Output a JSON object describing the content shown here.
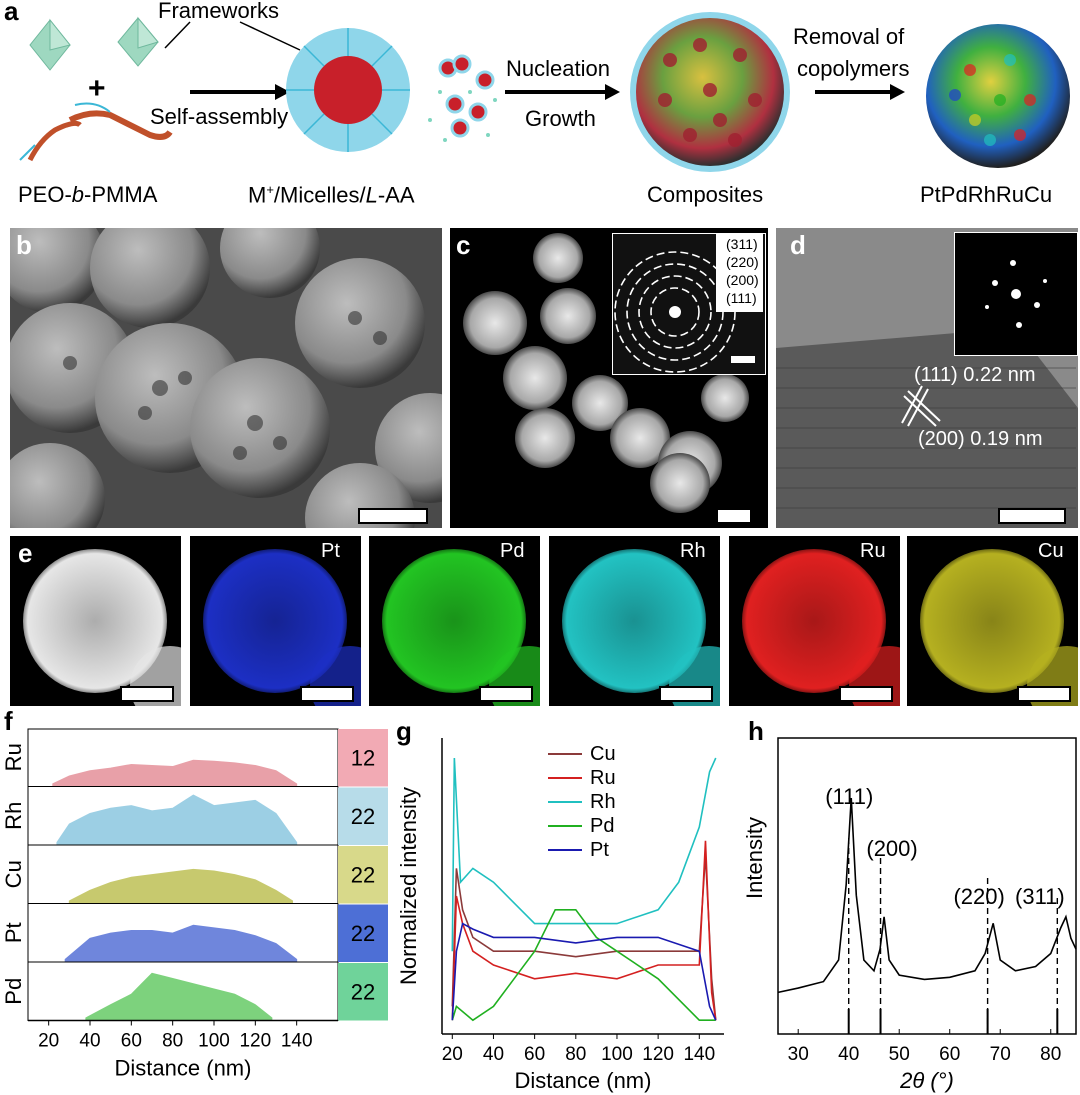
{
  "panel_labels": [
    "a",
    "b",
    "c",
    "d",
    "e",
    "f",
    "g",
    "h"
  ],
  "schematic": {
    "frameworks_label": "Frameworks",
    "plus_sign": "+",
    "self_assembly": "Self-assembly",
    "nucleation": "Nucleation",
    "growth": "Growth",
    "removal_line1": "Removal of",
    "removal_line2": "copolymers",
    "cap_peo_1": "PEO-",
    "cap_peo_b": "b",
    "cap_peo_2": "-PMMA",
    "cap_micelle_1": "M",
    "cap_micelle_sup": "+",
    "cap_micelle_2": "/Micelles/",
    "cap_micelle_L": "L",
    "cap_micelle_3": "-AA",
    "cap_composites": "Composites",
    "cap_product": "PtPdRhRuCu"
  },
  "panel_c": {
    "rings": [
      "(311)",
      "(220)",
      "(200)",
      "(111)"
    ]
  },
  "panel_d": {
    "plane1": "(111) 0.22 nm",
    "plane2": "(200) 0.19 nm"
  },
  "panel_e": {
    "maps": [
      {
        "label": "",
        "color": "#e6e6e6"
      },
      {
        "label": "Pt",
        "color": "#1c2fc4"
      },
      {
        "label": "Pd",
        "color": "#22c422"
      },
      {
        "label": "Rh",
        "color": "#22c2c2"
      },
      {
        "label": "Ru",
        "color": "#e02020"
      },
      {
        "label": "Cu",
        "color": "#b5b020"
      }
    ]
  },
  "chart_data": [
    {
      "panel": "f",
      "type": "area",
      "xlabel": "Distance (nm)",
      "xlim": [
        10,
        160
      ],
      "xticks": [
        20,
        40,
        60,
        80,
        100,
        120,
        140
      ],
      "series": [
        {
          "name": "Ru",
          "percent": "12",
          "color": "#e8a0a8",
          "badge": "#f2aab4",
          "x": [
            22,
            30,
            40,
            50,
            60,
            70,
            80,
            90,
            100,
            110,
            120,
            130,
            140
          ],
          "y": [
            0.05,
            0.2,
            0.3,
            0.35,
            0.42,
            0.4,
            0.38,
            0.5,
            0.48,
            0.45,
            0.4,
            0.3,
            0.05
          ]
        },
        {
          "name": "Rh",
          "percent": "22",
          "color": "#9ccfe4",
          "badge": "#b7dce9",
          "x": [
            24,
            30,
            40,
            50,
            60,
            70,
            80,
            90,
            100,
            110,
            120,
            130,
            140
          ],
          "y": [
            0.05,
            0.4,
            0.6,
            0.7,
            0.75,
            0.65,
            0.7,
            0.95,
            0.75,
            0.8,
            0.85,
            0.6,
            0.05
          ]
        },
        {
          "name": "Cu",
          "percent": "22",
          "color": "#c7c96e",
          "badge": "#d8d98a",
          "x": [
            30,
            40,
            50,
            60,
            70,
            80,
            90,
            100,
            110,
            120,
            130,
            138
          ],
          "y": [
            0.05,
            0.25,
            0.4,
            0.5,
            0.55,
            0.6,
            0.65,
            0.62,
            0.55,
            0.45,
            0.25,
            0.05
          ]
        },
        {
          "name": "Pt",
          "percent": "22",
          "color": "#6f86dc",
          "badge": "#4d6fd6",
          "x": [
            28,
            40,
            50,
            60,
            70,
            80,
            90,
            100,
            110,
            120,
            130,
            140
          ],
          "y": [
            0.05,
            0.45,
            0.55,
            0.6,
            0.6,
            0.55,
            0.7,
            0.65,
            0.6,
            0.5,
            0.35,
            0.05
          ]
        },
        {
          "name": "Pd",
          "percent": "22",
          "color": "#7dd27d",
          "badge": "#6fd39a",
          "x": [
            38,
            50,
            60,
            65,
            70,
            75,
            80,
            90,
            100,
            110,
            120,
            128
          ],
          "y": [
            0.05,
            0.3,
            0.5,
            0.7,
            0.9,
            0.85,
            0.8,
            0.7,
            0.6,
            0.5,
            0.3,
            0.05
          ]
        }
      ]
    },
    {
      "panel": "g",
      "type": "line",
      "xlabel": "Distance (nm)",
      "ylabel": "Normalized intensity",
      "xlim": [
        15,
        152
      ],
      "xticks": [
        20,
        40,
        60,
        80,
        100,
        120,
        140
      ],
      "legend_position": "top-center",
      "series": [
        {
          "name": "Cu",
          "color": "#8b3a3a",
          "x": [
            20,
            22,
            25,
            30,
            40,
            60,
            80,
            100,
            120,
            140,
            143,
            146,
            148
          ],
          "y": [
            0.1,
            0.6,
            0.45,
            0.35,
            0.3,
            0.3,
            0.28,
            0.3,
            0.3,
            0.3,
            0.65,
            0.2,
            0.05
          ]
        },
        {
          "name": "Ru",
          "color": "#d42020",
          "x": [
            20,
            22,
            25,
            30,
            40,
            60,
            80,
            100,
            120,
            140,
            143,
            146,
            148
          ],
          "y": [
            0.05,
            0.5,
            0.4,
            0.3,
            0.25,
            0.2,
            0.22,
            0.2,
            0.25,
            0.25,
            0.7,
            0.15,
            0.05
          ]
        },
        {
          "name": "Rh",
          "color": "#20c0c0",
          "x": [
            20,
            21,
            24,
            30,
            40,
            60,
            80,
            100,
            120,
            130,
            140,
            145,
            148
          ],
          "y": [
            0.3,
            1.0,
            0.55,
            0.6,
            0.55,
            0.4,
            0.4,
            0.4,
            0.45,
            0.55,
            0.75,
            0.95,
            1.0
          ]
        },
        {
          "name": "Pd",
          "color": "#20b020",
          "x": [
            20,
            22,
            30,
            40,
            50,
            60,
            70,
            80,
            90,
            100,
            120,
            140,
            148
          ],
          "y": [
            0.05,
            0.1,
            0.05,
            0.1,
            0.2,
            0.3,
            0.45,
            0.45,
            0.35,
            0.3,
            0.2,
            0.05,
            0.05
          ]
        },
        {
          "name": "Pt",
          "color": "#1a1ab0",
          "x": [
            20,
            22,
            25,
            30,
            40,
            60,
            80,
            100,
            120,
            140,
            145,
            148
          ],
          "y": [
            0.05,
            0.3,
            0.4,
            0.38,
            0.35,
            0.35,
            0.33,
            0.35,
            0.35,
            0.3,
            0.1,
            0.05
          ]
        }
      ]
    },
    {
      "panel": "h",
      "type": "line",
      "xlabel": "2θ (°)",
      "ylabel": "Intensity",
      "xlim": [
        26,
        85
      ],
      "xticks": [
        30,
        40,
        50,
        60,
        70,
        80
      ],
      "peaks": [
        {
          "label": "(111)",
          "ref_x": 40.0,
          "peak_x": 40.5
        },
        {
          "label": "(200)",
          "ref_x": 46.3,
          "peak_x": 47.0
        },
        {
          "label": "(220)",
          "ref_x": 67.5,
          "peak_x": 68.6
        },
        {
          "label": "(311)",
          "ref_x": 81.3,
          "peak_x": 83.0
        }
      ],
      "series": [
        {
          "name": "XRD",
          "color": "#000000",
          "x": [
            26,
            30,
            35,
            38,
            39.5,
            40.5,
            41.5,
            43,
            45,
            46.2,
            47,
            48,
            50,
            55,
            60,
            65,
            67,
            68.6,
            70,
            73,
            77,
            80,
            82,
            83,
            84,
            85
          ],
          "y": [
            0.1,
            0.12,
            0.15,
            0.25,
            0.6,
            1.0,
            0.55,
            0.25,
            0.2,
            0.3,
            0.45,
            0.25,
            0.18,
            0.16,
            0.17,
            0.2,
            0.28,
            0.42,
            0.25,
            0.2,
            0.22,
            0.28,
            0.4,
            0.45,
            0.35,
            0.3
          ]
        }
      ]
    }
  ]
}
